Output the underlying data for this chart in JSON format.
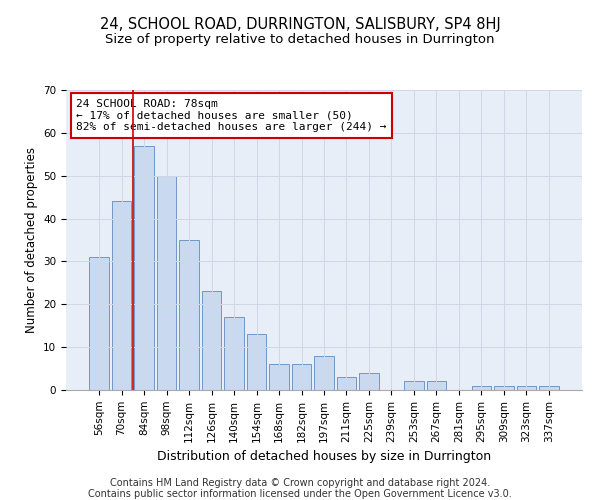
{
  "title": "24, SCHOOL ROAD, DURRINGTON, SALISBURY, SP4 8HJ",
  "subtitle": "Size of property relative to detached houses in Durrington",
  "xlabel": "Distribution of detached houses by size in Durrington",
  "ylabel": "Number of detached properties",
  "bar_labels": [
    "56sqm",
    "70sqm",
    "84sqm",
    "98sqm",
    "112sqm",
    "126sqm",
    "140sqm",
    "154sqm",
    "168sqm",
    "182sqm",
    "197sqm",
    "211sqm",
    "225sqm",
    "239sqm",
    "253sqm",
    "267sqm",
    "281sqm",
    "295sqm",
    "309sqm",
    "323sqm",
    "337sqm"
  ],
  "bar_values": [
    31,
    44,
    57,
    50,
    35,
    23,
    17,
    13,
    6,
    6,
    8,
    3,
    4,
    0,
    2,
    2,
    0,
    1,
    1,
    1,
    1
  ],
  "bar_color": "#c9d9f0",
  "bar_edge_color": "#7097c8",
  "annotation_text": "24 SCHOOL ROAD: 78sqm\n← 17% of detached houses are smaller (50)\n82% of semi-detached houses are larger (244) →",
  "vline_index": 1.5,
  "vline_color": "#cc0000",
  "annotation_box_color": "#ffffff",
  "annotation_box_edge": "#cc0000",
  "ylim": [
    0,
    70
  ],
  "yticks": [
    0,
    10,
    20,
    30,
    40,
    50,
    60,
    70
  ],
  "grid_color": "#d0d8e8",
  "background_color": "#e8eef8",
  "footer_line1": "Contains HM Land Registry data © Crown copyright and database right 2024.",
  "footer_line2": "Contains public sector information licensed under the Open Government Licence v3.0.",
  "title_fontsize": 10.5,
  "subtitle_fontsize": 9.5,
  "xlabel_fontsize": 9,
  "ylabel_fontsize": 8.5,
  "tick_fontsize": 7.5,
  "annotation_fontsize": 8,
  "footer_fontsize": 7
}
